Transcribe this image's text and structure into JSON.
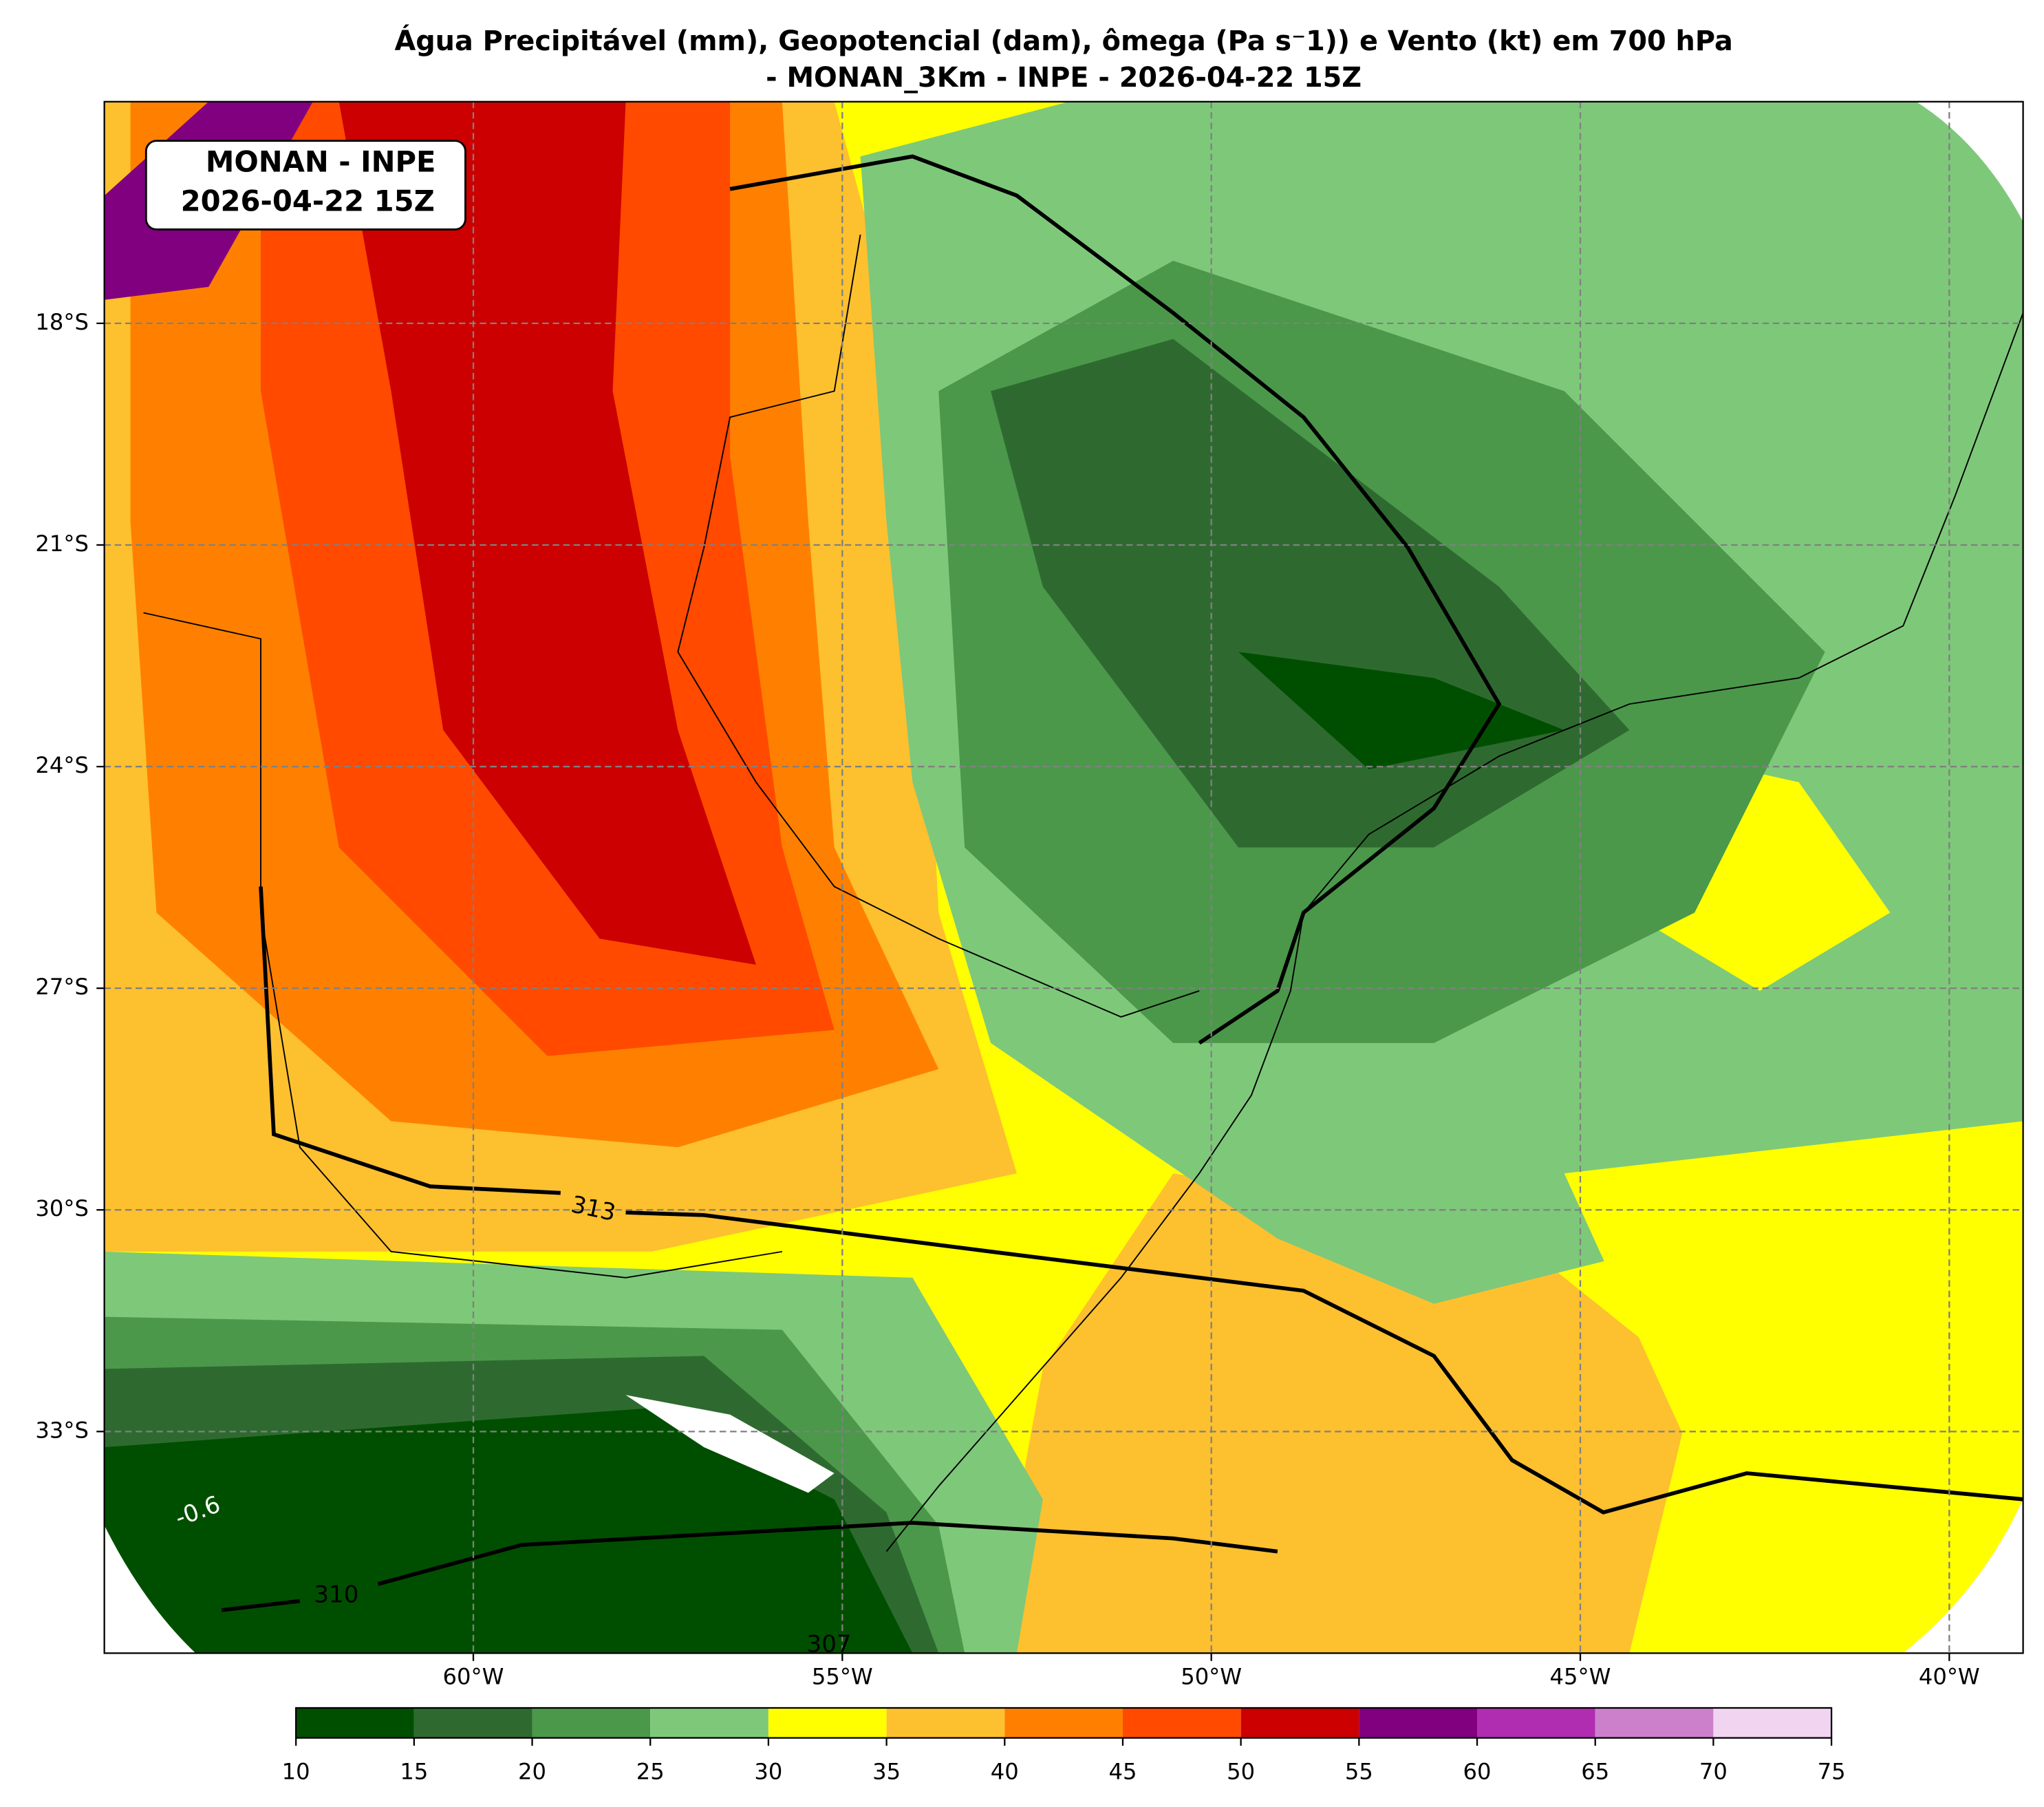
{
  "chart_data": {
    "type": "map",
    "title": "Água Precipitável (mm), Geopotencial (dam), ômega (Pa s⁻1)) e Vento (kt) em 700 hPa",
    "subtitle": "- MONAN_3Km - INPE - 2026-04-22 15Z",
    "annotation": [
      "MONAN - INPE",
      "2026-04-22 15Z"
    ],
    "xlim": [
      -65,
      -39
    ],
    "ylim": [
      -36,
      -15
    ],
    "xticks": [
      {
        "value": -60,
        "label": "60°W"
      },
      {
        "value": -55,
        "label": "55°W"
      },
      {
        "value": -50,
        "label": "50°W"
      },
      {
        "value": -45,
        "label": "45°W"
      },
      {
        "value": -40,
        "label": "40°W"
      }
    ],
    "yticks": [
      {
        "value": -18,
        "label": "18°S"
      },
      {
        "value": -21,
        "label": "21°S"
      },
      {
        "value": -24,
        "label": "24°S"
      },
      {
        "value": -27,
        "label": "27°S"
      },
      {
        "value": -30,
        "label": "30°S"
      },
      {
        "value": -33,
        "label": "33°S"
      }
    ],
    "grid": true,
    "contour_labels": [
      313,
      310,
      307,
      -0.6
    ],
    "colorbar": {
      "bounds": [
        10,
        15,
        20,
        25,
        30,
        35,
        40,
        45,
        50,
        55,
        60,
        65,
        70,
        75
      ],
      "colors": [
        "#004f00",
        "#2e6a30",
        "#4b984b",
        "#7ec87a",
        "#ffff00",
        "#fdc02f",
        "#ff8000",
        "#ff4a00",
        "#cc0000",
        "#800080",
        "#b02cb0",
        "#cc80cc",
        "#f0d4f0"
      ]
    }
  }
}
